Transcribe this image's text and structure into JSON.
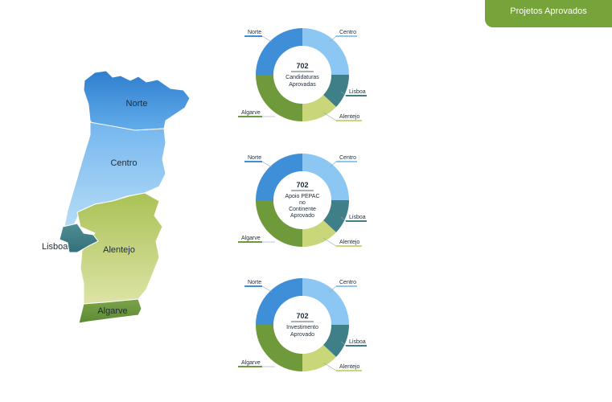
{
  "header": {
    "tab_label": "Projetos Aprovados"
  },
  "map": {
    "regions": {
      "norte": "Norte",
      "centro": "Centro",
      "lisboa": "Lisboa",
      "alentejo": "Alentejo",
      "algarve": "Algarve"
    }
  },
  "donuts": [
    {
      "value": "702",
      "caption_lines": [
        "Candidaturas",
        "Aprovadas"
      ]
    },
    {
      "value": "702",
      "caption_lines": [
        "Apoio PEPAC",
        "no",
        "Continente",
        "Aprovado"
      ]
    },
    {
      "value": "702",
      "caption_lines": [
        "Investimento",
        "Aprovado"
      ]
    }
  ],
  "legend": {
    "norte": "Norte",
    "centro": "Centro",
    "lisboa": "Lisboa",
    "alentejo": "Alentejo",
    "algarve": "Algarve"
  },
  "colors": {
    "accent": "#76a33a",
    "norte": "#3f8fd8",
    "centro": "#8cc6f2",
    "lisboa": "#3f7f87",
    "alentejo": "#c9d77a",
    "algarve": "#6f9a3c"
  }
}
